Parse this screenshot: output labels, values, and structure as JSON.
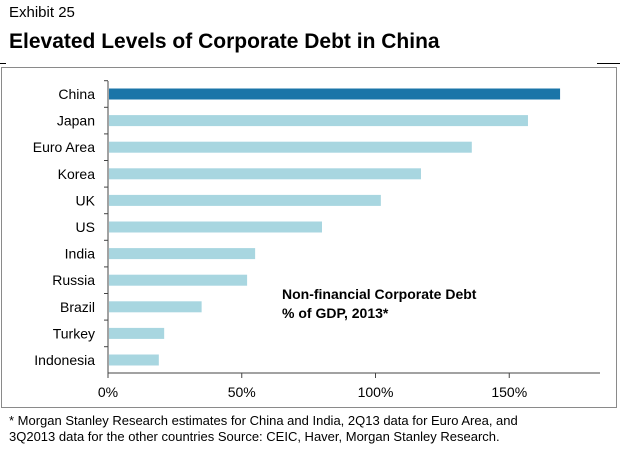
{
  "header": {
    "exhibit": "Exhibit 25",
    "title": "Elevated Levels of Corporate Debt in China"
  },
  "chart_data": {
    "type": "bar",
    "orientation": "horizontal",
    "categories": [
      "China",
      "Japan",
      "Euro Area",
      "Korea",
      "UK",
      "US",
      "India",
      "Russia",
      "Brazil",
      "Turkey",
      "Indonesia"
    ],
    "values": [
      169,
      157,
      136,
      117,
      102,
      80,
      55,
      52,
      35,
      21,
      19
    ],
    "x_ticks": [
      "0%",
      "50%",
      "100%",
      "150%"
    ],
    "xlim": [
      0,
      180
    ],
    "annotation": [
      "Non-financial Corporate Debt",
      "% of GDP, 2013*"
    ],
    "highlight_color": "#1b75a8",
    "bar_color": "#a8d6e0",
    "grid": false,
    "legend": "none"
  },
  "footnote": {
    "line1": "* Morgan Stanley Research estimates for China and India, 2Q13 data for Euro Area, and",
    "line2": "3Q2013 data for the other countries Source: CEIC, Haver, Morgan Stanley Research."
  }
}
